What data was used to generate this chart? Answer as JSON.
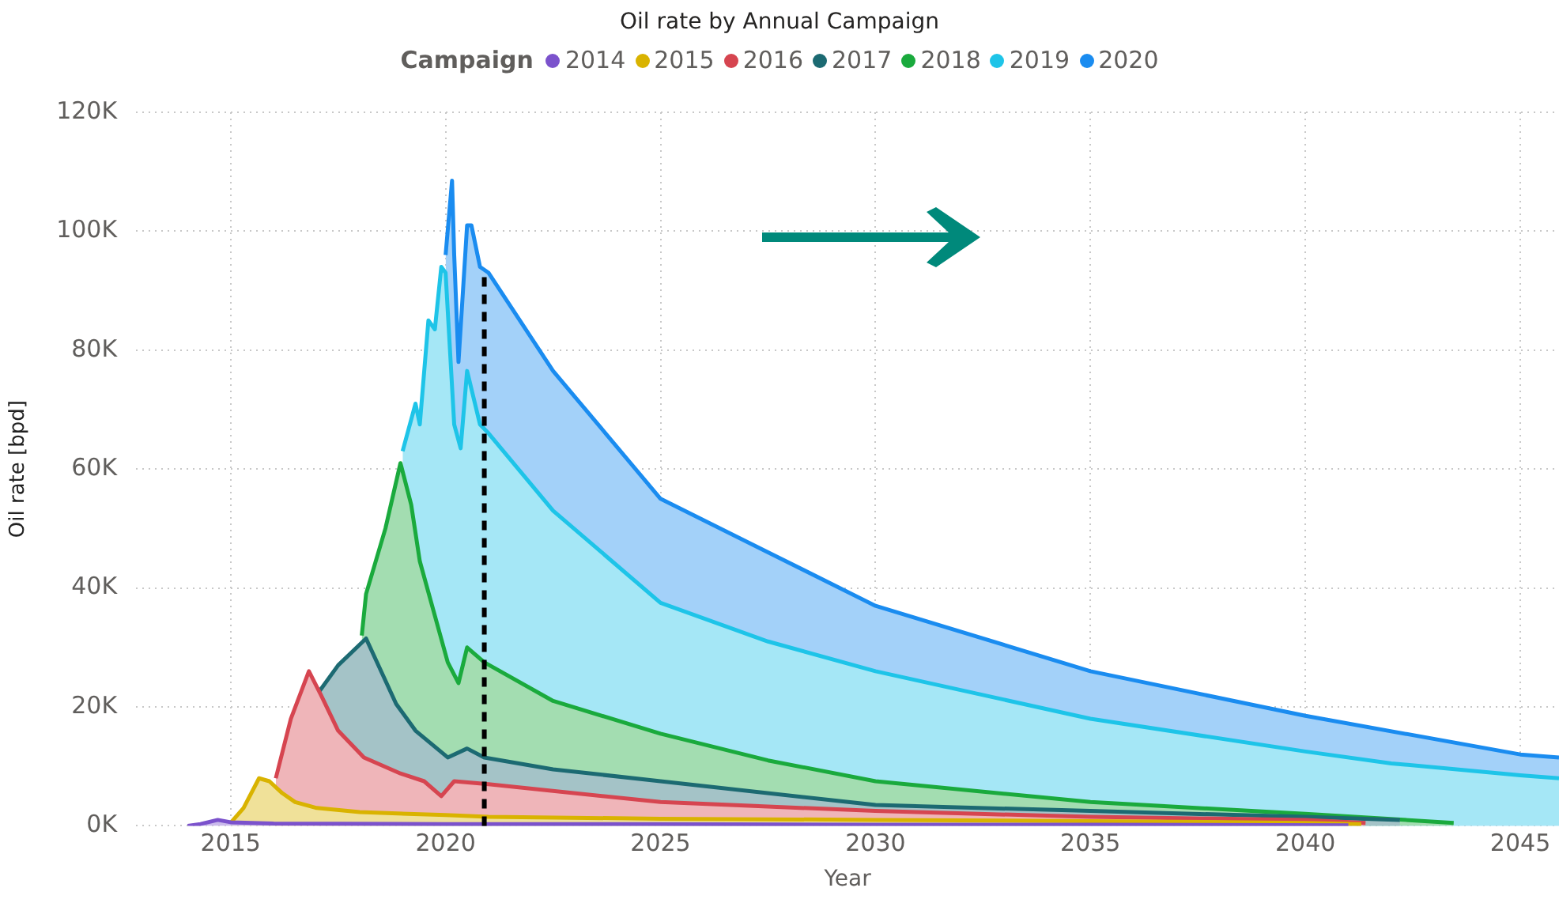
{
  "chart_data": {
    "type": "area",
    "title": "Oil rate by Annual Campaign",
    "legend_title": "Campaign",
    "xlabel": "Year",
    "ylabel": "Oil rate [bpd]",
    "legend": "top",
    "grid": true,
    "marker": "none",
    "xlim": [
      2012.8,
      2045.9
    ],
    "xticks": [
      2015,
      2020,
      2025,
      2030,
      2035,
      2040,
      2045
    ],
    "ylim": [
      0,
      120000
    ],
    "yticks": [
      {
        "value": 0,
        "label": "0K"
      },
      {
        "value": 20000,
        "label": "20K"
      },
      {
        "value": 40000,
        "label": "40K"
      },
      {
        "value": 60000,
        "label": "60K"
      },
      {
        "value": 80000,
        "label": "80K"
      },
      {
        "value": 100000,
        "label": "100K"
      },
      {
        "value": 120000,
        "label": "120K"
      }
    ],
    "ref_lines": [
      {
        "axis": "x",
        "value": 2020.9,
        "label": null,
        "color": "#000000",
        "line_style": "dashed"
      }
    ],
    "series": [
      {
        "name": "2014",
        "color": "#7b52cc",
        "x": [
          2014.0,
          2014.3,
          2014.7,
          2015.0,
          2016,
          2020,
          2025,
          2030,
          2035,
          2041
        ],
        "values": [
          0,
          300,
          1000,
          600,
          400,
          300,
          300,
          200,
          200,
          100
        ]
      },
      {
        "name": "2015",
        "color": "#d9b300",
        "x": [
          2015.0,
          2015.3,
          2015.66,
          2015.9,
          2016.2,
          2016.5,
          2017,
          2018,
          2020,
          2021,
          2025,
          2030,
          2035,
          2040,
          2041.3
        ],
        "values": [
          500,
          3000,
          8000,
          7500,
          5500,
          4000,
          3000,
          2300,
          1800,
          1500,
          1200,
          1000,
          800,
          500,
          300
        ]
      },
      {
        "name": "2016",
        "color": "#d64550",
        "x": [
          2016.05,
          2016.4,
          2016.82,
          2017.1,
          2017.5,
          2018.1,
          2018.95,
          2019.5,
          2019.9,
          2020.2,
          2021,
          2025,
          2030,
          2035,
          2040,
          2041.4
        ],
        "values": [
          8000,
          18000,
          26000,
          22000,
          16000,
          11500,
          8800,
          7500,
          5000,
          7500,
          7000,
          4000,
          2500,
          1500,
          1000,
          500
        ]
      },
      {
        "name": "2017",
        "color": "#1c6a72",
        "x": [
          2017.0,
          2017.5,
          2018.15,
          2018.85,
          2019.3,
          2020.05,
          2020.5,
          2020.9,
          2022.5,
          2025,
          2030,
          2035,
          2040,
          2042.2
        ],
        "values": [
          22000,
          27000,
          31500,
          20500,
          16000,
          11500,
          13000,
          11500,
          9500,
          7500,
          3500,
          2500,
          1500,
          1000
        ]
      },
      {
        "name": "2018",
        "color": "#1aaa3d",
        "x": [
          2018.05,
          2018.15,
          2018.6,
          2018.95,
          2019.2,
          2019.4,
          2020.05,
          2020.3,
          2020.5,
          2020.9,
          2022.5,
          2025,
          2027.5,
          2030,
          2035,
          2040,
          2043.45
        ],
        "values": [
          32000,
          39000,
          50000,
          61000,
          54000,
          44500,
          27500,
          24000,
          30000,
          27500,
          21000,
          15500,
          11000,
          7500,
          4000,
          2000,
          500
        ]
      },
      {
        "name": "2019",
        "color": "#1ec4e8",
        "x": [
          2019.0,
          2019.3,
          2019.4,
          2019.6,
          2019.75,
          2019.9,
          2020.0,
          2020.2,
          2020.35,
          2020.5,
          2020.8,
          2021,
          2022.5,
          2025,
          2027.5,
          2030,
          2035,
          2040,
          2042,
          2045,
          2045.9
        ],
        "values": [
          63000,
          71000,
          67500,
          85000,
          83500,
          94000,
          93000,
          67500,
          63500,
          76500,
          67500,
          66000,
          53000,
          37500,
          31000,
          26000,
          18000,
          12500,
          10500,
          8500,
          8000
        ]
      },
      {
        "name": "2020",
        "color": "#1a8cf0",
        "x": [
          2020.0,
          2020.15,
          2020.2,
          2020.3,
          2020.5,
          2020.6,
          2020.8,
          2021,
          2022.5,
          2025,
          2027.5,
          2030,
          2035,
          2040,
          2045,
          2045.9
        ],
        "values": [
          96000,
          108500,
          96000,
          78000,
          101000,
          101000,
          94000,
          93000,
          76500,
          55000,
          46000,
          37000,
          26000,
          18500,
          12000,
          11500
        ]
      }
    ]
  }
}
